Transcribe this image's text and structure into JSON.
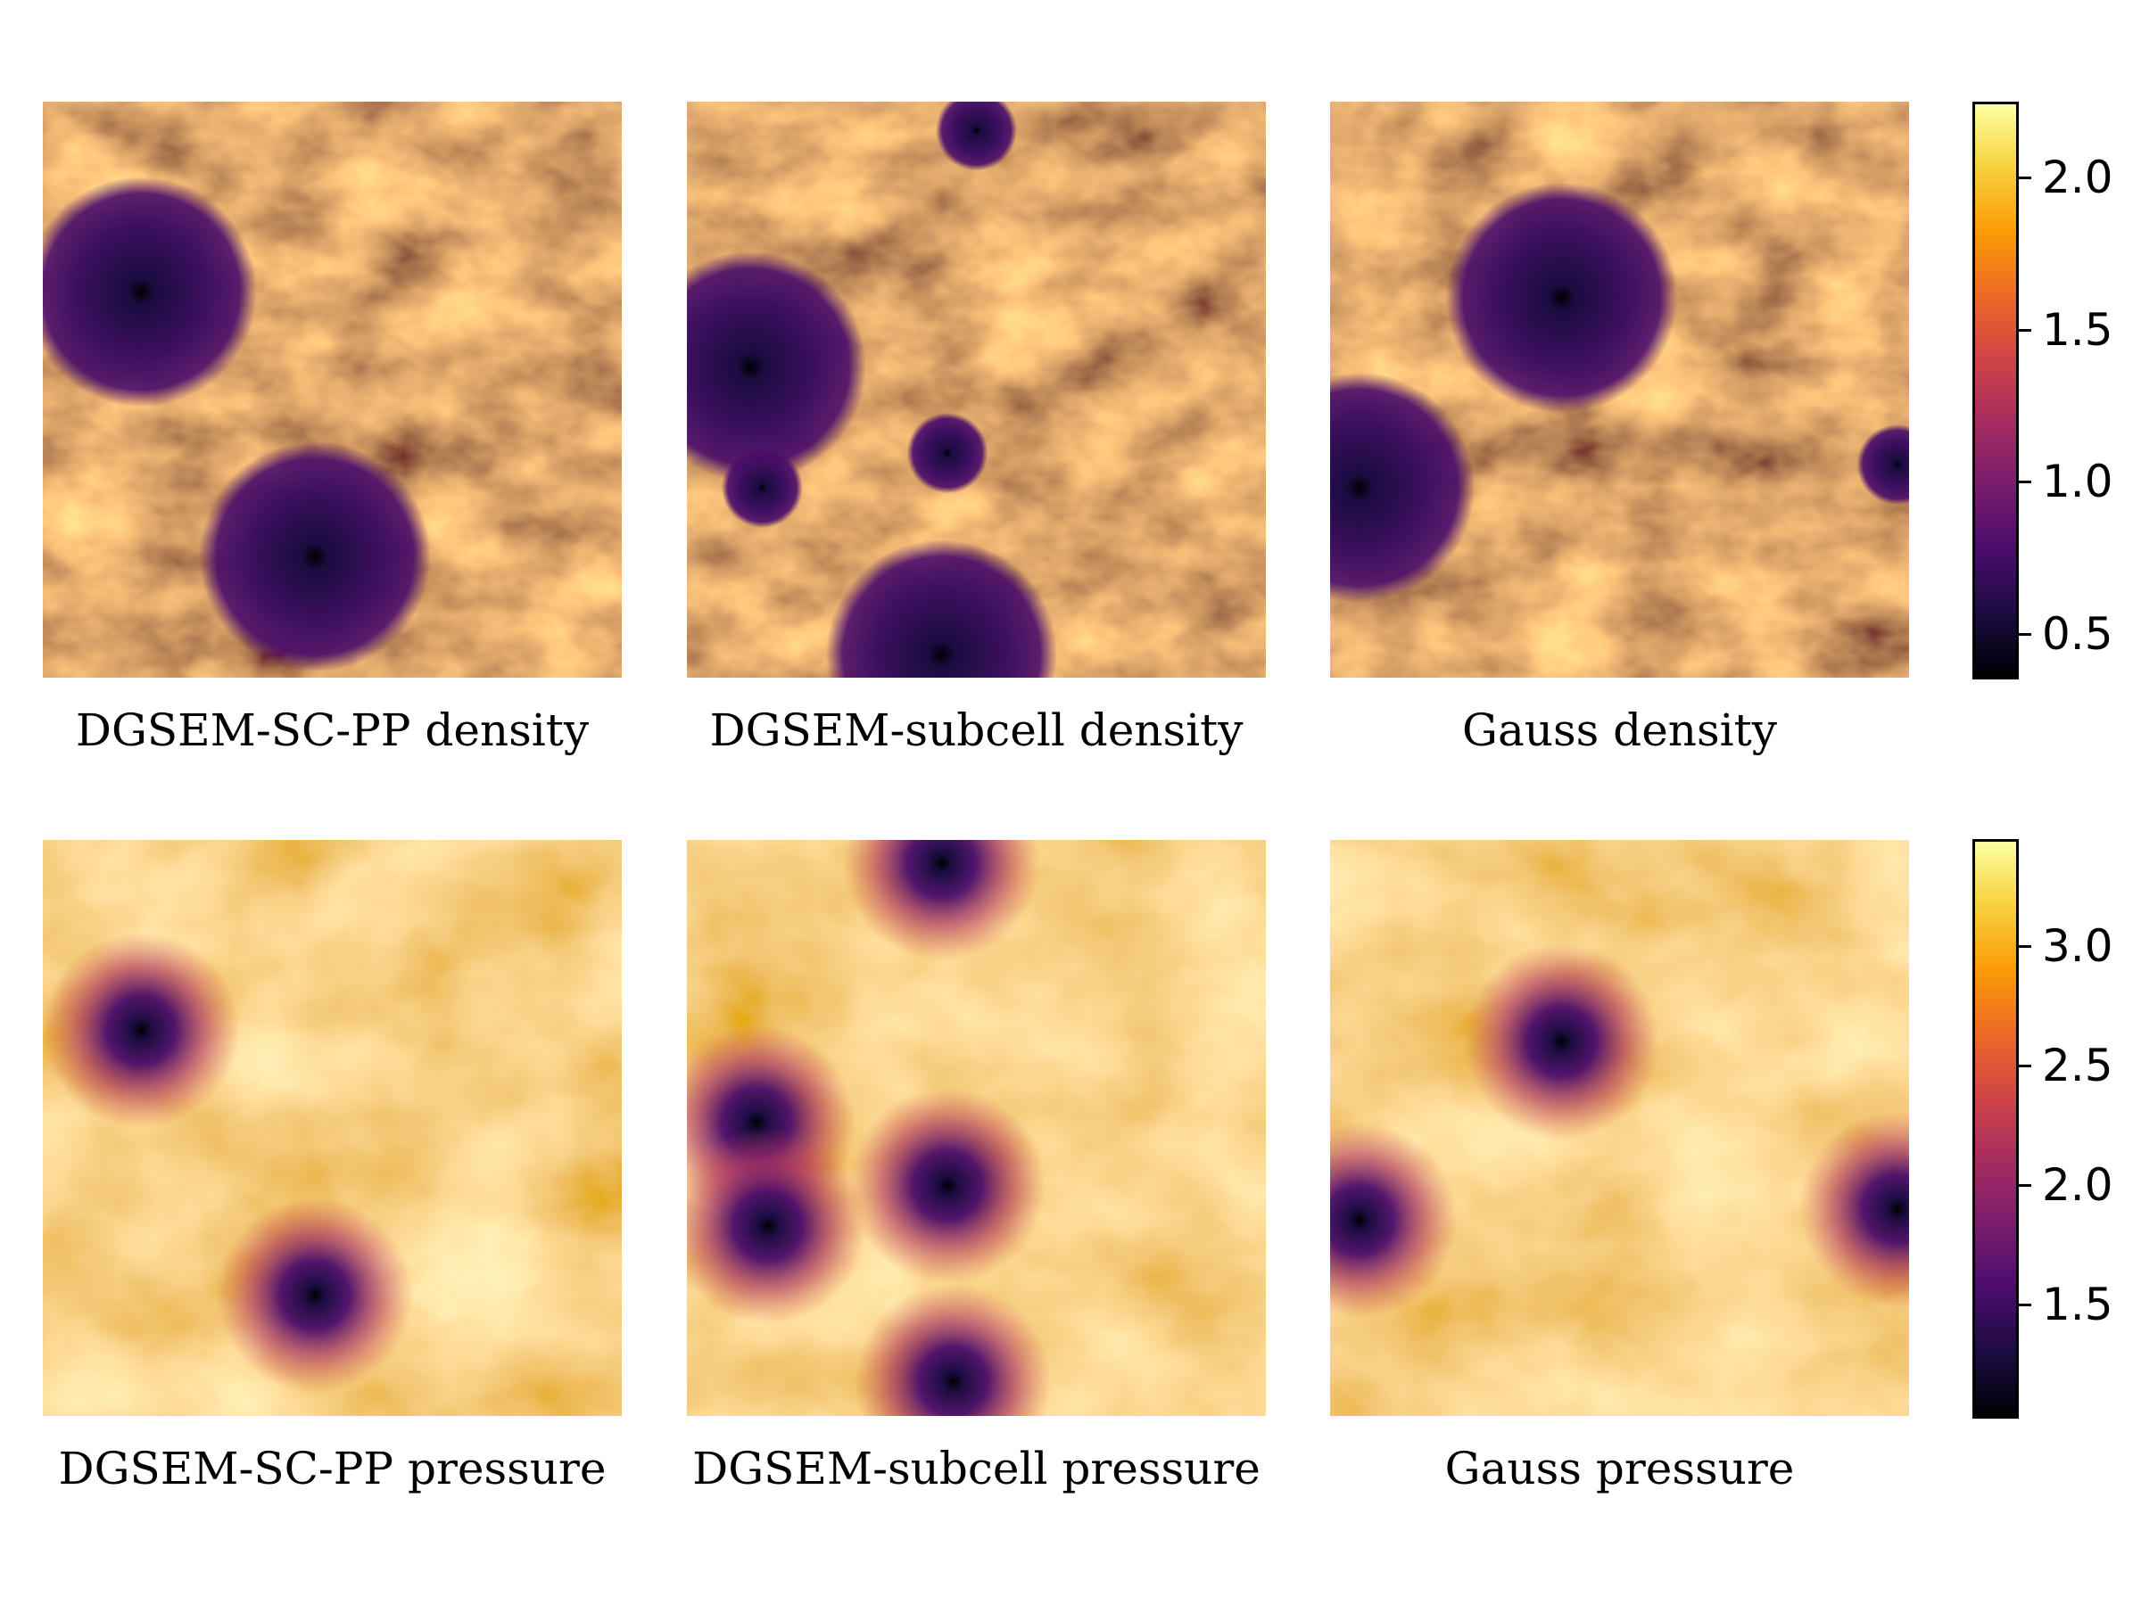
{
  "chart_data": [
    {
      "type": "heatmap",
      "row": "density",
      "colormap": "inferno",
      "panels": [
        {
          "caption": "DGSEM-SC-PP density",
          "vortex_centers": [
            [
              0.17,
              0.67
            ],
            [
              0.47,
              0.21
            ]
          ]
        },
        {
          "caption": "DGSEM-subcell density",
          "vortex_centers": [
            [
              0.11,
              0.54
            ],
            [
              0.44,
              0.04
            ],
            [
              0.5,
              0.95
            ],
            [
              0.45,
              0.39
            ],
            [
              0.13,
              0.33
            ]
          ]
        },
        {
          "caption": "Gauss density",
          "vortex_centers": [
            [
              0.4,
              0.66
            ],
            [
              0.05,
              0.33
            ],
            [
              0.98,
              0.37
            ]
          ]
        }
      ],
      "colorbar": {
        "ticks": [
          2.0,
          1.5,
          1.0,
          0.5
        ],
        "tick_labels": [
          "2.0",
          "1.5",
          "1.0",
          "0.5"
        ],
        "range": [
          0.35,
          2.25
        ]
      }
    },
    {
      "type": "heatmap",
      "row": "pressure",
      "colormap": "inferno",
      "panels": [
        {
          "caption": "DGSEM-SC-PP pressure",
          "vortex_centers": [
            [
              0.17,
              0.67
            ],
            [
              0.47,
              0.21
            ]
          ]
        },
        {
          "caption": "DGSEM-subcell pressure",
          "vortex_centers": [
            [
              0.12,
              0.51
            ],
            [
              0.44,
              0.96
            ],
            [
              0.46,
              0.06
            ],
            [
              0.45,
              0.4
            ],
            [
              0.14,
              0.33
            ]
          ]
        },
        {
          "caption": "Gauss pressure",
          "vortex_centers": [
            [
              0.4,
              0.65
            ],
            [
              0.05,
              0.34
            ],
            [
              0.98,
              0.36
            ]
          ]
        }
      ],
      "colorbar": {
        "ticks": [
          3.0,
          2.5,
          2.0,
          1.5
        ],
        "tick_labels": [
          "3.0",
          "2.5",
          "2.0",
          "1.5"
        ],
        "range": [
          1.02,
          3.45
        ]
      }
    }
  ]
}
